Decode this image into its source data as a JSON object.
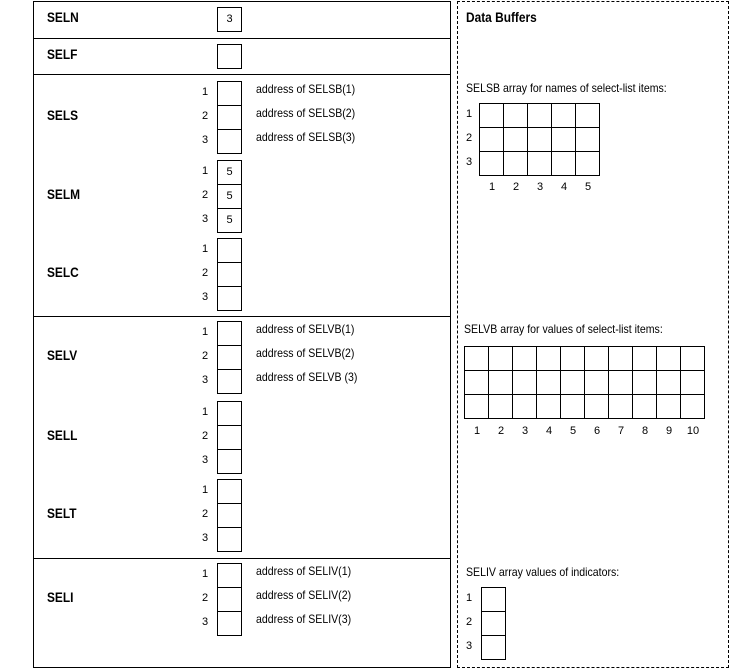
{
  "descriptor": {
    "fields": [
      {
        "name": "SELN",
        "cells": [
          "3"
        ],
        "indexed": false,
        "addresses": []
      },
      {
        "name": "SELF",
        "cells": [
          ""
        ],
        "indexed": false,
        "addresses": []
      },
      {
        "name": "SELS",
        "cells": [
          "",
          "",
          ""
        ],
        "indexed": true,
        "addresses": [
          "address  of SELSB(1)",
          "address  of SELSB(2)",
          "address  of SELSB(3)"
        ]
      },
      {
        "name": "SELM",
        "cells": [
          "5",
          "5",
          "5"
        ],
        "indexed": true,
        "addresses": []
      },
      {
        "name": "SELC",
        "cells": [
          "",
          "",
          ""
        ],
        "indexed": true,
        "addresses": []
      },
      {
        "name": "SELV",
        "cells": [
          "",
          "",
          ""
        ],
        "indexed": true,
        "addresses": [
          "address  of SELVB(1)",
          "address  of SELVB(2)",
          "address  of SELVB (3)"
        ]
      },
      {
        "name": "SELL",
        "cells": [
          "",
          "",
          ""
        ],
        "indexed": true,
        "addresses": []
      },
      {
        "name": "SELT",
        "cells": [
          "",
          "",
          ""
        ],
        "indexed": true,
        "addresses": []
      },
      {
        "name": "SELI",
        "cells": [
          "",
          "",
          ""
        ],
        "indexed": true,
        "addresses": [
          "address  of SELIV(1)",
          "address  of SELIV(2)",
          "address  of SELIV(3)"
        ]
      }
    ],
    "indices": [
      "1",
      "2",
      "3"
    ]
  },
  "buffers": {
    "title": "Data Buffers",
    "selsb": {
      "caption": "SELSB array for names  of select-list  items:",
      "rows": [
        "1",
        "2",
        "3"
      ],
      "cols": [
        "1",
        "2",
        "3",
        "4",
        "5"
      ]
    },
    "selvb": {
      "caption": "SELVB array for values  of select-list  items:",
      "rows": [],
      "cols": [
        "1",
        "2",
        "3",
        "4",
        "5",
        "6",
        "7",
        "8",
        "9",
        "10"
      ]
    },
    "seliv": {
      "caption": "SELIV array values  of indicators:",
      "rows": [
        "1",
        "2",
        "3"
      ],
      "cols": []
    }
  }
}
